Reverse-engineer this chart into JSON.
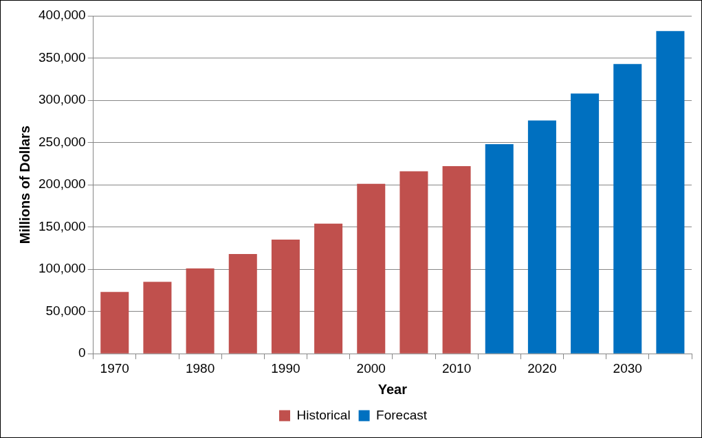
{
  "chart_data": {
    "type": "bar",
    "xlabel": "Year",
    "ylabel": "Millions of Dollars",
    "categories": [
      "1970",
      null,
      "1980",
      null,
      "1990",
      null,
      "2000",
      null,
      "2010",
      null,
      "2020",
      null,
      "2030",
      null
    ],
    "series": [
      {
        "name": "Historical",
        "color": "#c0504d",
        "values": [
          73000,
          85000,
          101000,
          118000,
          135000,
          154000,
          201000,
          216000,
          222000,
          null,
          null,
          null,
          null,
          null
        ]
      },
      {
        "name": "Forecast",
        "color": "#0070c0",
        "values": [
          null,
          null,
          null,
          null,
          null,
          null,
          null,
          null,
          null,
          248000,
          276000,
          308000,
          343000,
          382000
        ]
      }
    ],
    "ylim": [
      0,
      400000
    ],
    "yticks": [
      0,
      {
        "value": 50000,
        "label": "50,000"
      },
      {
        "value": 100000,
        "label": "100,000"
      },
      {
        "value": 150000,
        "label": "150,000"
      },
      {
        "value": 200000,
        "label": "200,000"
      },
      {
        "value": 250000,
        "label": "250,000"
      },
      {
        "value": 300000,
        "label": "300,000"
      },
      {
        "value": 350000,
        "label": "350,000"
      },
      {
        "value": 400000,
        "label": "400,000"
      }
    ],
    "grid": "y",
    "legend": "bottom"
  }
}
